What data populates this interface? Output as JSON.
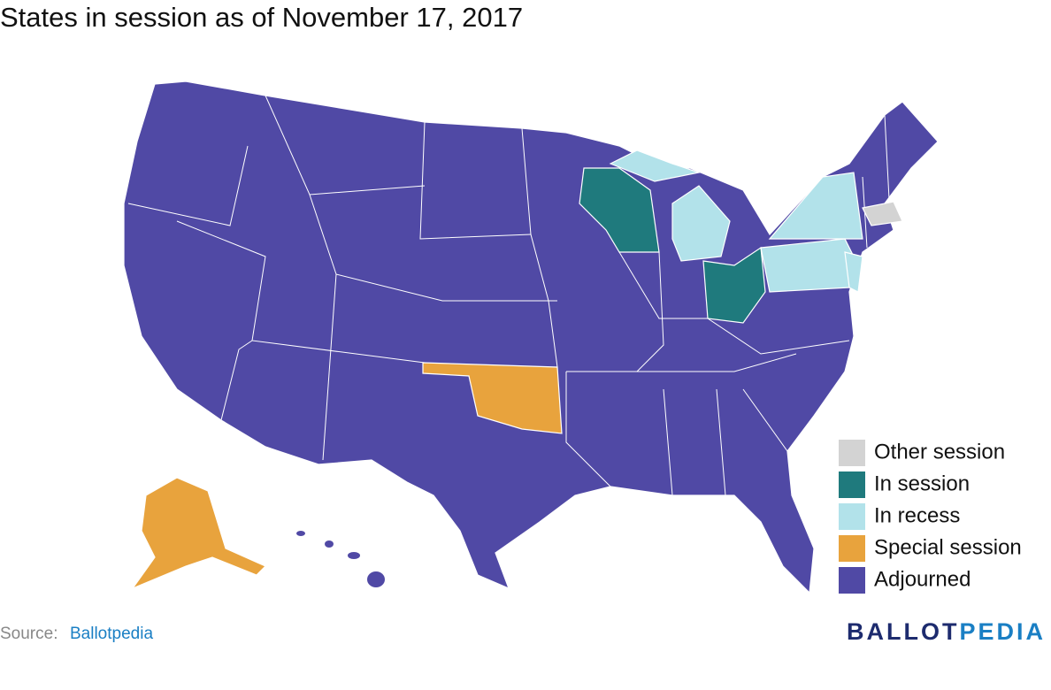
{
  "header": {
    "title": "States in session as of November 17, 2017"
  },
  "legend": [
    {
      "label": "Other session",
      "color": "#d3d3d3"
    },
    {
      "label": "In session",
      "color": "#1f7a7d"
    },
    {
      "label": "In recess",
      "color": "#b2e2ea"
    },
    {
      "label": "Special session",
      "color": "#e8a33d"
    },
    {
      "label": "Adjourned",
      "color": "#5049a5"
    }
  ],
  "footer": {
    "source_label": "Source:",
    "source_link": "Ballotpedia",
    "logo_left": "BALLOT",
    "logo_right": "PEDIA"
  }
}
